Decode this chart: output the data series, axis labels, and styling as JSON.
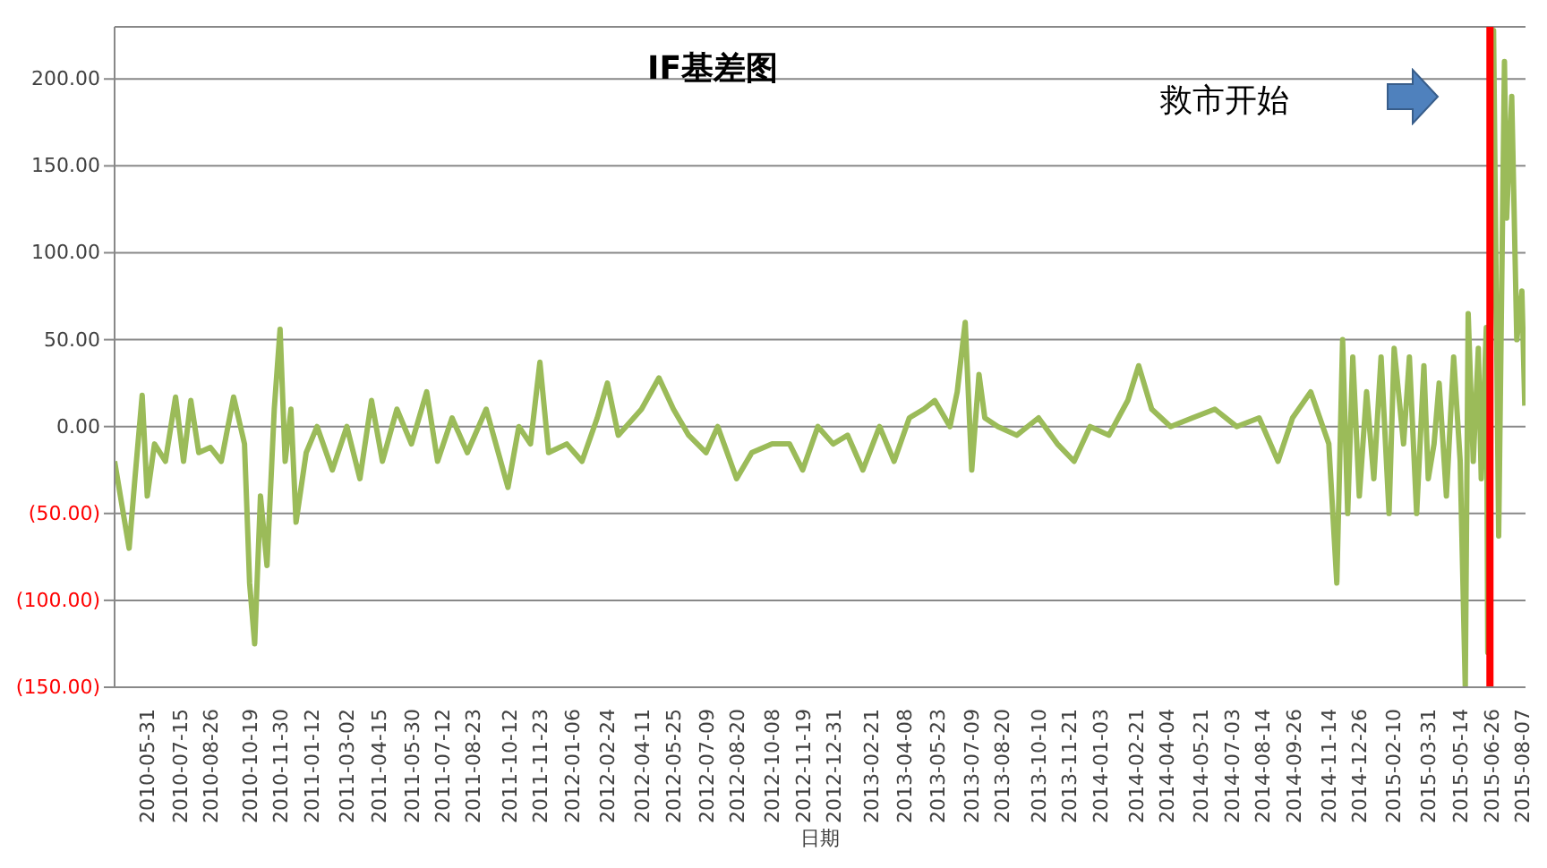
{
  "chart_data": {
    "type": "line",
    "title": "IF基差图",
    "xlabel": "日期",
    "annotations": [
      "救市开始"
    ],
    "x": [
      "2010-04-16",
      "2010-04-26",
      "2010-05-06",
      "2010-05-14",
      "2010-05-24",
      "2010-05-31",
      "2010-06-10",
      "2010-06-25",
      "2010-07-09",
      "2010-07-20",
      "2010-07-30",
      "2010-08-10",
      "2010-08-26",
      "2010-09-10",
      "2010-09-27",
      "2010-10-12",
      "2010-10-19",
      "2010-10-26",
      "2010-11-03",
      "2010-11-12",
      "2010-11-22",
      "2010-11-30",
      "2010-12-07",
      "2010-12-15",
      "2010-12-22",
      "2011-01-05",
      "2011-01-20",
      "2011-02-10",
      "2011-03-02",
      "2011-03-20",
      "2011-04-05",
      "2011-04-20",
      "2011-05-10",
      "2011-05-30",
      "2011-06-20",
      "2011-07-05",
      "2011-07-25",
      "2011-08-15",
      "2011-09-10",
      "2011-10-10",
      "2011-10-25",
      "2011-11-10",
      "2011-11-23",
      "2011-12-05",
      "2011-12-30",
      "2012-01-20",
      "2012-02-10",
      "2012-02-24",
      "2012-03-10",
      "2012-04-11",
      "2012-05-05",
      "2012-05-25",
      "2012-06-15",
      "2012-07-09",
      "2012-07-25",
      "2012-08-20",
      "2012-09-10",
      "2012-10-08",
      "2012-11-01",
      "2012-11-19",
      "2012-12-10",
      "2012-12-31",
      "2013-01-20",
      "2013-02-10",
      "2013-03-05",
      "2013-03-25",
      "2013-04-15",
      "2013-05-05",
      "2013-05-20",
      "2013-06-10",
      "2013-06-20",
      "2013-07-01",
      "2013-07-10",
      "2013-07-20",
      "2013-07-28",
      "2013-08-15",
      "2013-09-10",
      "2013-10-10",
      "2013-11-05",
      "2013-11-28",
      "2013-12-20",
      "2014-01-15",
      "2014-02-10",
      "2014-02-25",
      "2014-03-15",
      "2014-04-10",
      "2014-05-10",
      "2014-06-10",
      "2014-07-10",
      "2014-08-10",
      "2014-09-05",
      "2014-09-25",
      "2014-10-20",
      "2014-11-14",
      "2014-11-25",
      "2014-12-03",
      "2014-12-10",
      "2014-12-17",
      "2014-12-26",
      "2015-01-05",
      "2015-01-15",
      "2015-01-25",
      "2015-02-05",
      "2015-02-12",
      "2015-02-25",
      "2015-03-05",
      "2015-03-15",
      "2015-03-25",
      "2015-03-31",
      "2015-04-08",
      "2015-04-15",
      "2015-04-25",
      "2015-05-05",
      "2015-05-14",
      "2015-05-21",
      "2015-05-25",
      "2015-06-01",
      "2015-06-08",
      "2015-06-12",
      "2015-06-19",
      "2015-06-21",
      "2015-06-29",
      "2015-07-06",
      "2015-07-14",
      "2015-07-17",
      "2015-07-24",
      "2015-07-31",
      "2015-08-07",
      "2015-08-11"
    ],
    "series": [
      {
        "color": "#9bbb59",
        "values": [
          -20,
          -45,
          -70,
          -30,
          18,
          -40,
          -10,
          -20,
          17,
          -20,
          15,
          -15,
          -12,
          -20,
          17,
          -10,
          -90,
          -125,
          -40,
          -80,
          10,
          56,
          -20,
          10,
          -55,
          -15,
          0,
          -25,
          0,
          -30,
          15,
          -20,
          10,
          -10,
          20,
          -20,
          5,
          -15,
          10,
          -35,
          0,
          -10,
          37,
          -15,
          -10,
          -20,
          5,
          25,
          -5,
          10,
          28,
          10,
          -5,
          -15,
          0,
          -30,
          -15,
          -10,
          -10,
          -25,
          0,
          -10,
          -5,
          -25,
          0,
          -20,
          5,
          10,
          15,
          0,
          20,
          60,
          -25,
          30,
          5,
          0,
          -5,
          5,
          -10,
          -20,
          0,
          -5,
          15,
          35,
          10,
          0,
          5,
          10,
          0,
          5,
          -20,
          5,
          20,
          -10,
          -90,
          50,
          -50,
          40,
          -40,
          20,
          -30,
          40,
          -50,
          45,
          -10,
          40,
          -50,
          35,
          -30,
          -10,
          25,
          -40,
          40,
          -20,
          -150,
          65,
          -20,
          45,
          -30,
          57,
          -130,
          228,
          -63,
          210,
          120,
          190,
          50,
          78,
          12
        ]
      }
    ],
    "xlim": [
      "2010-04-16",
      "2015-08-12"
    ],
    "xticks": [
      "2010-05-31",
      "2010-07-15",
      "2010-08-26",
      "2010-10-19",
      "2010-11-30",
      "2011-01-12",
      "2011-03-02",
      "2011-04-15",
      "2011-05-30",
      "2011-07-12",
      "2011-08-23",
      "2011-10-12",
      "2011-11-23",
      "2012-01-06",
      "2012-02-24",
      "2012-04-11",
      "2012-05-25",
      "2012-07-09",
      "2012-08-20",
      "2012-10-08",
      "2012-11-19",
      "2012-12-31",
      "2013-02-21",
      "2013-04-08",
      "2013-05-23",
      "2013-07-09",
      "2013-08-20",
      "2013-10-10",
      "2013-11-21",
      "2014-01-03",
      "2014-02-21",
      "2014-04-04",
      "2014-05-21",
      "2014-07-03",
      "2014-08-14",
      "2014-09-26",
      "2014-11-14",
      "2014-12-26",
      "2015-02-10",
      "2015-03-31",
      "2015-05-14",
      "2015-06-26",
      "2015-08-07"
    ],
    "ylim": [
      -150,
      230
    ],
    "yticks": [
      {
        "value": -150,
        "label": "(150.00)"
      },
      {
        "value": -100,
        "label": "(100.00)"
      },
      {
        "value": -50,
        "label": "(50.00)"
      },
      {
        "value": 0,
        "label": "0.00"
      },
      {
        "value": 50,
        "label": "50.00"
      },
      {
        "value": 100,
        "label": "100.00"
      },
      {
        "value": 150,
        "label": "150.00"
      },
      {
        "value": 200,
        "label": "200.00"
      }
    ],
    "grid": "y",
    "legend": false,
    "ref_lines": [
      {
        "axis": "x",
        "value": "2015-06-24",
        "color": "#ff0000"
      }
    ]
  }
}
